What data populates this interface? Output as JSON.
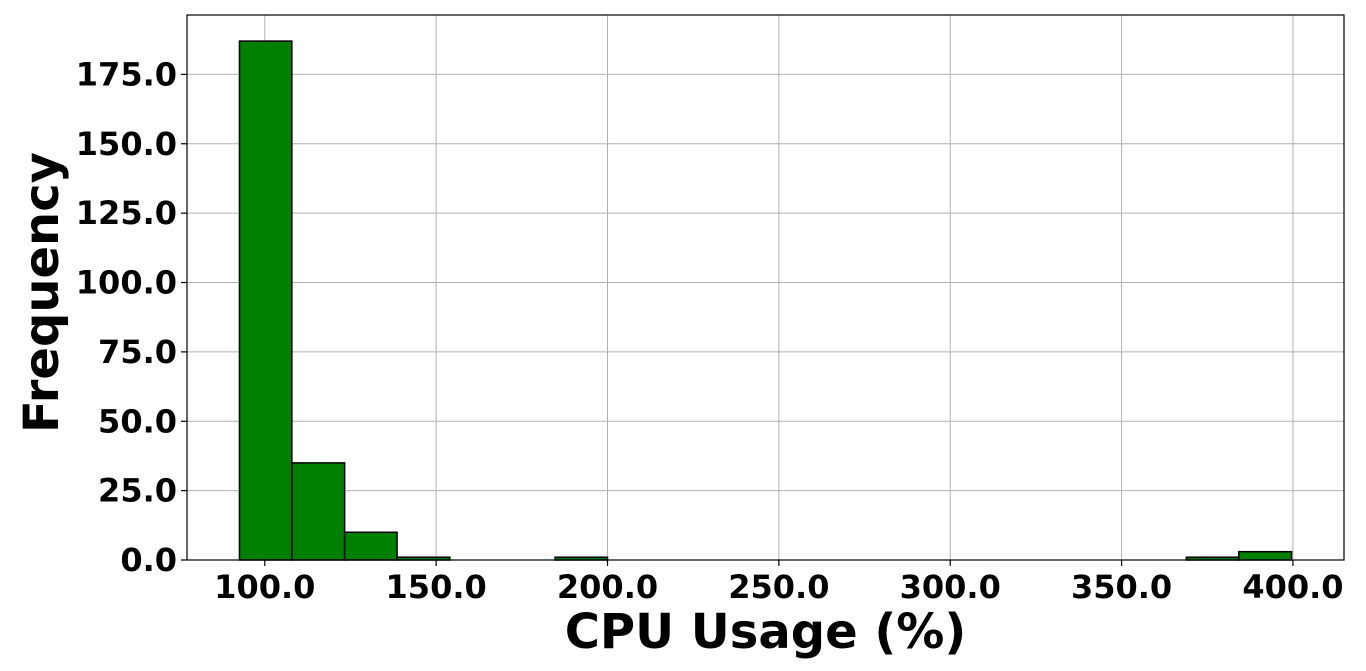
{
  "chart_data": {
    "type": "bar",
    "subtype": "histogram",
    "title": "",
    "xlabel": "CPU Usage (%)",
    "ylabel": "Frequency",
    "bins": [
      {
        "start": 92.6,
        "end": 107.9,
        "count": 187
      },
      {
        "start": 107.9,
        "end": 123.3,
        "count": 35
      },
      {
        "start": 123.3,
        "end": 138.6,
        "count": 10
      },
      {
        "start": 138.6,
        "end": 154.0,
        "count": 1
      },
      {
        "start": 154.0,
        "end": 169.3,
        "count": 0
      },
      {
        "start": 169.3,
        "end": 184.7,
        "count": 0
      },
      {
        "start": 184.7,
        "end": 200.0,
        "count": 1
      },
      {
        "start": 200.0,
        "end": 215.4,
        "count": 0
      },
      {
        "start": 215.4,
        "end": 230.7,
        "count": 0
      },
      {
        "start": 230.7,
        "end": 246.1,
        "count": 0
      },
      {
        "start": 246.1,
        "end": 261.4,
        "count": 0
      },
      {
        "start": 261.4,
        "end": 276.8,
        "count": 0
      },
      {
        "start": 276.8,
        "end": 292.1,
        "count": 0
      },
      {
        "start": 292.1,
        "end": 307.5,
        "count": 0
      },
      {
        "start": 307.5,
        "end": 322.8,
        "count": 0
      },
      {
        "start": 322.8,
        "end": 338.2,
        "count": 0
      },
      {
        "start": 338.2,
        "end": 353.5,
        "count": 0
      },
      {
        "start": 353.5,
        "end": 368.9,
        "count": 0
      },
      {
        "start": 368.9,
        "end": 384.2,
        "count": 1
      },
      {
        "start": 384.2,
        "end": 399.6,
        "count": 3
      }
    ],
    "xlim": [
      77.3,
      414.9
    ],
    "ylim": [
      0,
      196.4
    ],
    "xticks": [
      100.0,
      150.0,
      200.0,
      250.0,
      300.0,
      350.0,
      400.0
    ],
    "xtick_labels": [
      "100.0",
      "150.0",
      "200.0",
      "250.0",
      "300.0",
      "350.0",
      "400.0"
    ],
    "yticks": [
      0.0,
      25.0,
      50.0,
      75.0,
      100.0,
      125.0,
      150.0,
      175.0
    ],
    "ytick_labels": [
      "0.0",
      "25.0",
      "50.0",
      "75.0",
      "100.0",
      "125.0",
      "150.0",
      "175.0"
    ],
    "grid": true,
    "legend": "none",
    "bar_color": "#008000",
    "edge_color": "#000000",
    "grid_color": "#b0b0b0"
  }
}
